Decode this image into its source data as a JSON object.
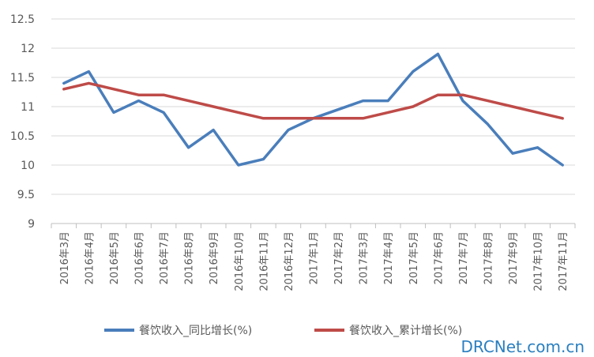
{
  "chart_data": {
    "type": "line",
    "categories": [
      "2016年3月",
      "2016年4月",
      "2016年5月",
      "2016年6月",
      "2016年7月",
      "2016年8月",
      "2016年9月",
      "2016年10月",
      "2016年11月",
      "2016年12月",
      "2017年1月",
      "2017年2月",
      "2017年3月",
      "2017年4月",
      "2017年5月",
      "2017年6月",
      "2017年7月",
      "2017年8月",
      "2017年9月",
      "2017年10月",
      "2017年11月"
    ],
    "series": [
      {
        "name": "餐饮收入_同比增长(%)",
        "color": "#4a7ebb",
        "values": [
          11.4,
          11.6,
          10.9,
          11.1,
          10.9,
          10.3,
          10.6,
          10.0,
          10.1,
          10.6,
          10.8,
          10.95,
          11.1,
          11.1,
          11.6,
          11.9,
          11.1,
          10.7,
          10.2,
          10.3,
          10.0
        ]
      },
      {
        "name": "餐饮收入_累计增长(%)",
        "color": "#be4b48",
        "values": [
          11.3,
          11.4,
          11.3,
          11.2,
          11.2,
          11.1,
          11.0,
          10.9,
          10.8,
          10.8,
          10.8,
          10.8,
          10.8,
          10.9,
          11.0,
          11.2,
          11.2,
          11.1,
          11.0,
          10.9,
          10.8
        ]
      }
    ],
    "yticks": [
      "9",
      "9.5",
      "10",
      "10.5",
      "11",
      "11.5",
      "12",
      "12.5"
    ],
    "ylim": [
      9,
      12.5
    ],
    "grid": true,
    "legend_position": "bottom"
  },
  "watermark": "DRCNet.com.cn"
}
